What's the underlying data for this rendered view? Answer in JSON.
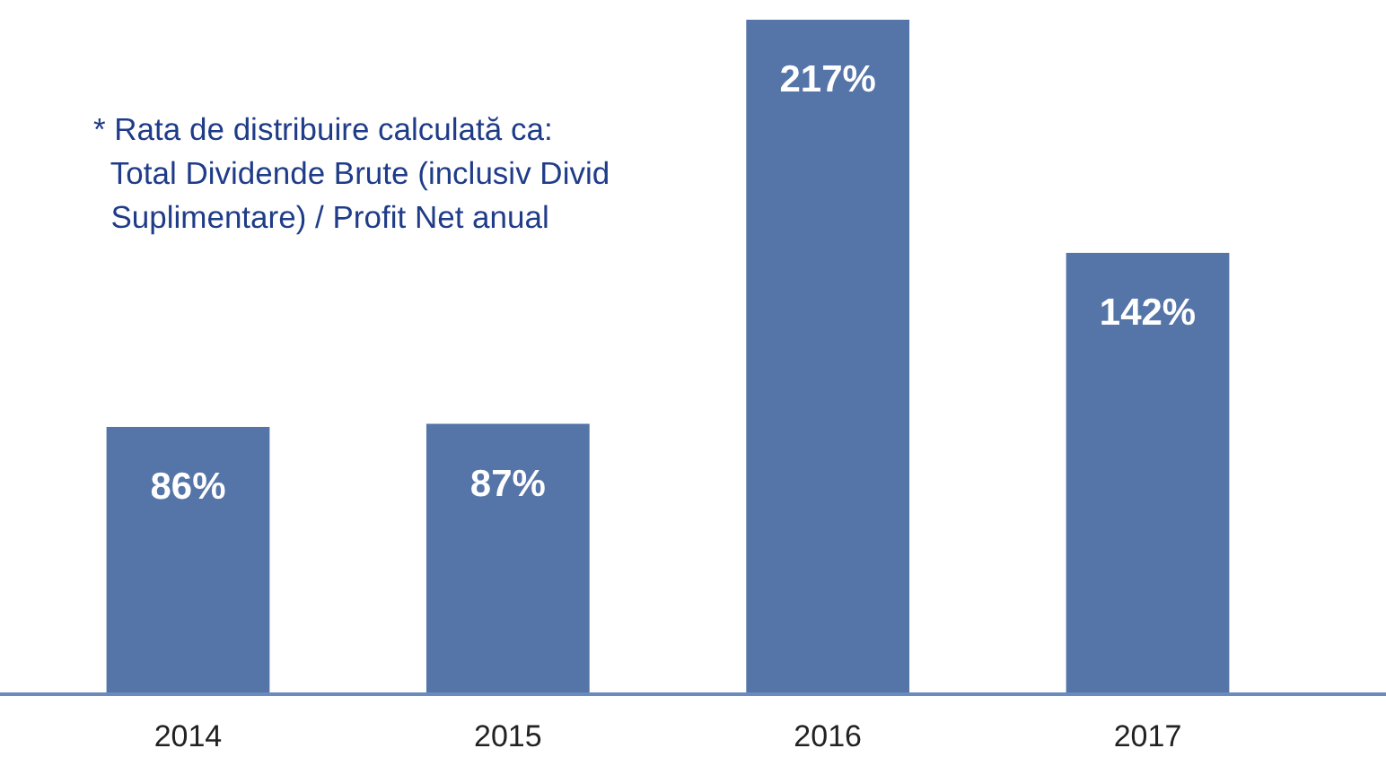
{
  "chart_data": {
    "type": "bar",
    "categories": [
      "2014",
      "2015",
      "2016",
      "2017"
    ],
    "values": [
      86,
      87,
      217,
      142
    ],
    "color": "#5574a8",
    "data_labels": true,
    "value_labels": [
      "86%",
      "87%",
      "217%",
      "142%"
    ],
    "annotations": [
      "* Rata de distribuire calculată ca:\n  Total Dividende Brute (inclusiv Divid\n  Suplimentare) / Profit Net anual"
    ]
  }
}
